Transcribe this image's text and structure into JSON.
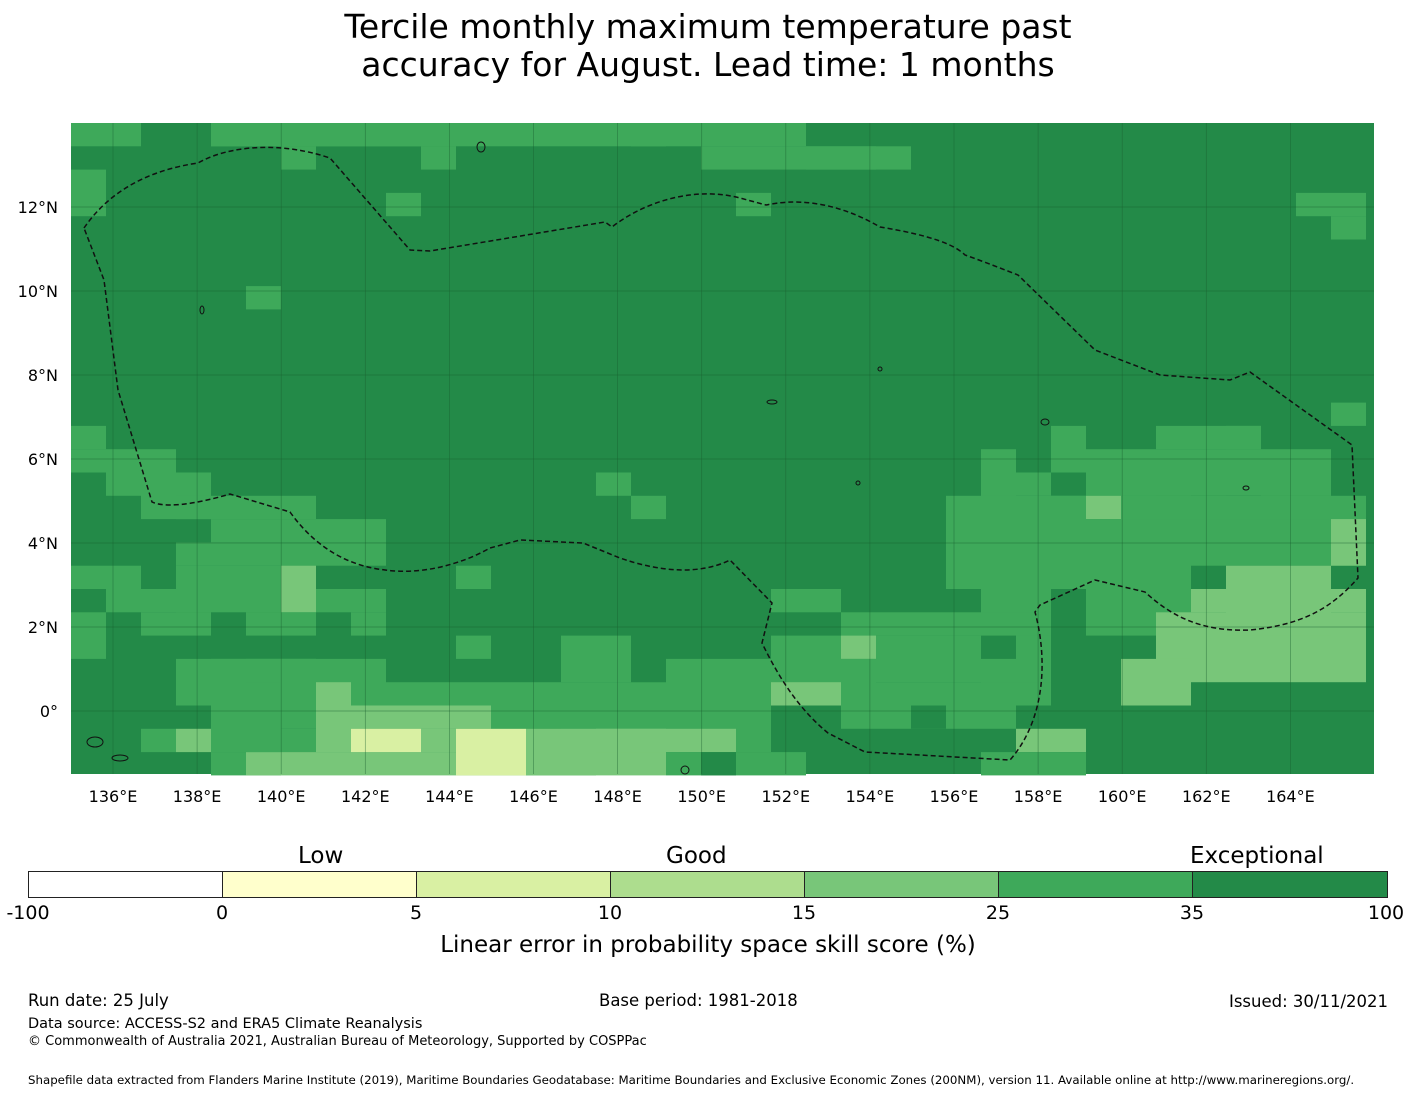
{
  "title_line1": "Tercile monthly maximum temperature past",
  "title_line2": "accuracy for August. Lead time: 1 months",
  "map": {
    "lon_labels": [
      "136°E",
      "138°E",
      "140°E",
      "142°E",
      "144°E",
      "146°E",
      "148°E",
      "150°E",
      "152°E",
      "154°E",
      "156°E",
      "158°E",
      "160°E",
      "162°E",
      "164°E"
    ],
    "lat_labels": [
      "12°N",
      "10°N",
      "8°N",
      "6°N",
      "4°N",
      "2°N",
      "0°"
    ],
    "lon_range": [
      135,
      166
    ],
    "lat_range": [
      -1.5,
      14
    ],
    "gridlines": true,
    "colors": {
      "exceptional_35_100": "#238a48",
      "good_25_35": "#3ea95a",
      "good_15_25": "#78c679",
      "good_10_15": "#addd8e",
      "low_5_10": "#d9f0a3",
      "low_0_5": "#ffffcc"
    }
  },
  "colorbar": {
    "category_labels": [
      "Low",
      "Good",
      "Exceptional"
    ],
    "ticks": [
      "-100",
      "0",
      "5",
      "10",
      "15",
      "25",
      "35",
      "100"
    ],
    "colors": [
      "#ffffff",
      "#ffffcc",
      "#d9f0a3",
      "#addd8e",
      "#78c679",
      "#3ea95a",
      "#238a48"
    ],
    "label": "Linear error in probability space skill score (%)"
  },
  "footer": {
    "run_date": "Run date: 25 July",
    "base_period": "Base period: 1981-2018",
    "issued": "Issued: 30/11/2021",
    "data_source": "Data source: ACCESS-S2 and ERA5 Climate Reanalysis",
    "copyright": "© Commonwealth of Australia 2021, Australian Bureau of Meteorology, Supported by COSPPac",
    "shapefile": "Shapefile data extracted from Flanders Marine Institute (2019), Maritime Boundaries Geodatabase: Maritime Boundaries and Exclusive Economic Zones (200NM), version 11. Available online at http://www.marineregions.org/."
  }
}
